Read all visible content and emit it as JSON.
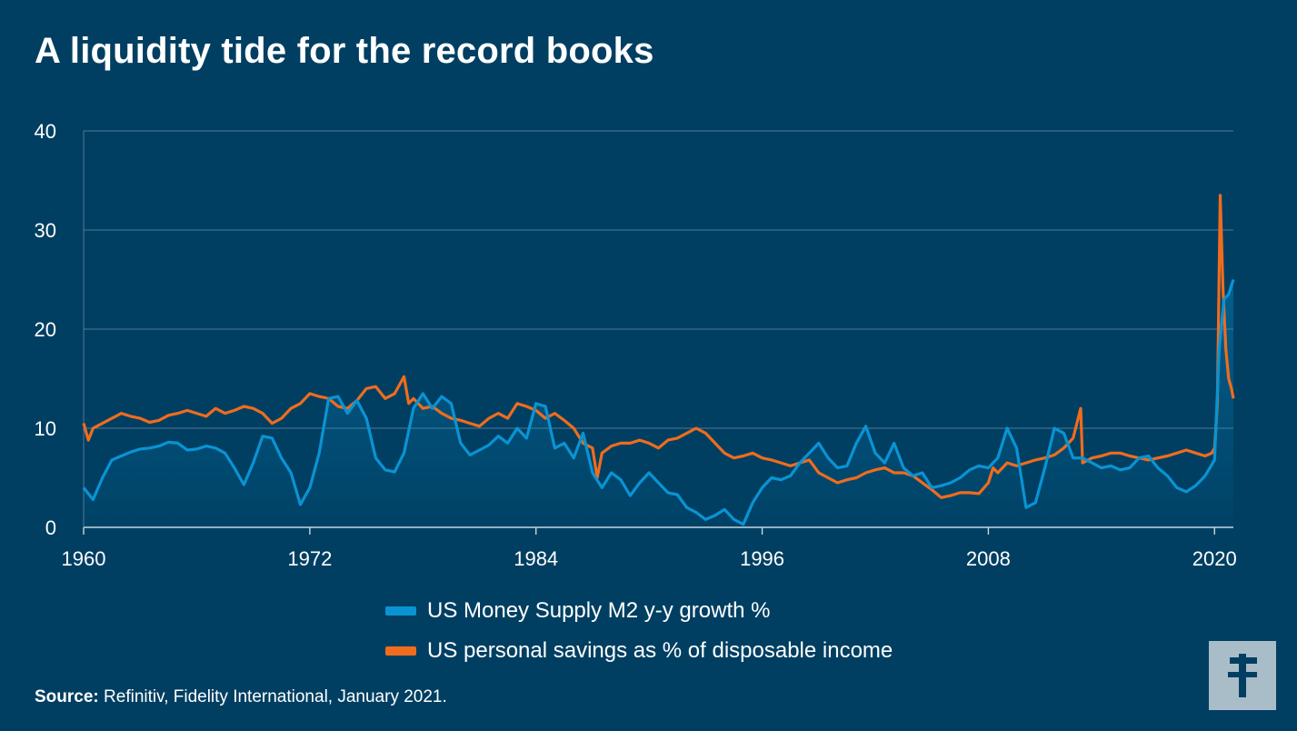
{
  "title": "A liquidity tide for the record books",
  "source": {
    "label": "Source:",
    "text": "Refinitiv, Fidelity International, January 2021."
  },
  "colors": {
    "background": "#003f62",
    "m2": "#0a93d3",
    "savings": "#ef6c1d",
    "grid": "#4f7a94",
    "logo_bg": "#a9bdc8",
    "logo_fg": "#003f62"
  },
  "logo": {
    "icon": "fidelity-f-logo-icon"
  },
  "chart_data": {
    "type": "line",
    "title": "",
    "xlabel": "",
    "ylabel": "",
    "xlim": [
      1960,
      2021
    ],
    "ylim": [
      0,
      40
    ],
    "x_ticks": [
      "1960",
      "1972",
      "1984",
      "1996",
      "2008",
      "2020"
    ],
    "x_tick_values": [
      1960,
      1972,
      1984,
      1996,
      2008,
      2020
    ],
    "y_ticks": [
      "0",
      "10",
      "20",
      "30",
      "40"
    ],
    "y_tick_values": [
      0,
      10,
      20,
      30,
      40
    ],
    "grid": true,
    "legend": "bottom-center",
    "series": [
      {
        "name": "US Money Supply M2 y-y growth %",
        "color": "#0a93d3",
        "points": [
          [
            1960.0,
            4.0
          ],
          [
            1960.5,
            2.8
          ],
          [
            1961.0,
            5.0
          ],
          [
            1961.5,
            6.8
          ],
          [
            1962.0,
            7.2
          ],
          [
            1962.5,
            7.6
          ],
          [
            1963.0,
            7.9
          ],
          [
            1963.5,
            8.0
          ],
          [
            1964.0,
            8.2
          ],
          [
            1964.5,
            8.6
          ],
          [
            1965.0,
            8.5
          ],
          [
            1965.5,
            7.8
          ],
          [
            1966.0,
            7.9
          ],
          [
            1966.5,
            8.2
          ],
          [
            1967.0,
            8.0
          ],
          [
            1967.5,
            7.5
          ],
          [
            1968.0,
            6.0
          ],
          [
            1968.5,
            4.3
          ],
          [
            1969.0,
            6.5
          ],
          [
            1969.5,
            9.2
          ],
          [
            1970.0,
            9.0
          ],
          [
            1970.5,
            7.0
          ],
          [
            1971.0,
            5.5
          ],
          [
            1971.5,
            2.3
          ],
          [
            1972.0,
            4.0
          ],
          [
            1972.5,
            7.5
          ],
          [
            1973.0,
            13.0
          ],
          [
            1973.5,
            13.2
          ],
          [
            1974.0,
            11.5
          ],
          [
            1974.5,
            12.8
          ],
          [
            1975.0,
            11.0
          ],
          [
            1975.5,
            7.0
          ],
          [
            1976.0,
            5.8
          ],
          [
            1976.5,
            5.6
          ],
          [
            1977.0,
            7.5
          ],
          [
            1977.5,
            12.0
          ],
          [
            1978.0,
            13.5
          ],
          [
            1978.5,
            12.0
          ],
          [
            1979.0,
            13.2
          ],
          [
            1979.5,
            12.5
          ],
          [
            1980.0,
            8.5
          ],
          [
            1980.5,
            7.3
          ],
          [
            1981.0,
            7.8
          ],
          [
            1981.5,
            8.3
          ],
          [
            1982.0,
            9.2
          ],
          [
            1982.5,
            8.5
          ],
          [
            1983.0,
            10.0
          ],
          [
            1983.5,
            9.0
          ],
          [
            1984.0,
            12.5
          ],
          [
            1984.5,
            12.2
          ],
          [
            1985.0,
            8.0
          ],
          [
            1985.5,
            8.5
          ],
          [
            1986.0,
            7.0
          ],
          [
            1986.5,
            9.5
          ],
          [
            1987.0,
            5.5
          ],
          [
            1987.5,
            4.0
          ],
          [
            1988.0,
            5.5
          ],
          [
            1988.5,
            4.8
          ],
          [
            1989.0,
            3.2
          ],
          [
            1989.5,
            4.5
          ],
          [
            1990.0,
            5.5
          ],
          [
            1990.5,
            4.5
          ],
          [
            1991.0,
            3.5
          ],
          [
            1991.5,
            3.3
          ],
          [
            1992.0,
            2.0
          ],
          [
            1992.5,
            1.5
          ],
          [
            1993.0,
            0.8
          ],
          [
            1993.5,
            1.2
          ],
          [
            1994.0,
            1.8
          ],
          [
            1994.5,
            0.8
          ],
          [
            1995.0,
            0.3
          ],
          [
            1995.5,
            2.5
          ],
          [
            1996.0,
            4.0
          ],
          [
            1996.5,
            5.0
          ],
          [
            1997.0,
            4.8
          ],
          [
            1997.5,
            5.2
          ],
          [
            1998.0,
            6.5
          ],
          [
            1998.5,
            7.5
          ],
          [
            1999.0,
            8.5
          ],
          [
            1999.5,
            7.0
          ],
          [
            2000.0,
            6.0
          ],
          [
            2000.5,
            6.2
          ],
          [
            2001.0,
            8.5
          ],
          [
            2001.5,
            10.2
          ],
          [
            2002.0,
            7.5
          ],
          [
            2002.5,
            6.5
          ],
          [
            2003.0,
            8.5
          ],
          [
            2003.5,
            6.0
          ],
          [
            2004.0,
            5.2
          ],
          [
            2004.5,
            5.5
          ],
          [
            2005.0,
            4.0
          ],
          [
            2005.5,
            4.2
          ],
          [
            2006.0,
            4.5
          ],
          [
            2006.5,
            5.0
          ],
          [
            2007.0,
            5.8
          ],
          [
            2007.5,
            6.2
          ],
          [
            2008.0,
            6.0
          ],
          [
            2008.5,
            7.0
          ],
          [
            2009.0,
            10.0
          ],
          [
            2009.5,
            8.0
          ],
          [
            2010.0,
            2.0
          ],
          [
            2010.5,
            2.5
          ],
          [
            2011.0,
            6.0
          ],
          [
            2011.5,
            10.0
          ],
          [
            2012.0,
            9.5
          ],
          [
            2012.5,
            7.0
          ],
          [
            2013.0,
            7.0
          ],
          [
            2013.5,
            6.5
          ],
          [
            2014.0,
            6.0
          ],
          [
            2014.5,
            6.2
          ],
          [
            2015.0,
            5.8
          ],
          [
            2015.5,
            6.0
          ],
          [
            2016.0,
            7.0
          ],
          [
            2016.5,
            7.2
          ],
          [
            2017.0,
            6.0
          ],
          [
            2017.5,
            5.2
          ],
          [
            2018.0,
            4.0
          ],
          [
            2018.5,
            3.6
          ],
          [
            2019.0,
            4.2
          ],
          [
            2019.5,
            5.2
          ],
          [
            2020.0,
            6.8
          ],
          [
            2020.25,
            18.0
          ],
          [
            2020.5,
            23.0
          ],
          [
            2020.75,
            23.5
          ],
          [
            2021.0,
            25.0
          ]
        ]
      },
      {
        "name": "US personal savings as % of disposable income",
        "color": "#ef6c1d",
        "points": [
          [
            1960.0,
            10.5
          ],
          [
            1960.25,
            8.8
          ],
          [
            1960.5,
            10.0
          ],
          [
            1961.0,
            10.5
          ],
          [
            1961.5,
            11.0
          ],
          [
            1962.0,
            11.5
          ],
          [
            1962.5,
            11.2
          ],
          [
            1963.0,
            11.0
          ],
          [
            1963.5,
            10.6
          ],
          [
            1964.0,
            10.8
          ],
          [
            1964.5,
            11.3
          ],
          [
            1965.0,
            11.5
          ],
          [
            1965.5,
            11.8
          ],
          [
            1966.0,
            11.5
          ],
          [
            1966.5,
            11.2
          ],
          [
            1967.0,
            12.0
          ],
          [
            1967.5,
            11.5
          ],
          [
            1968.0,
            11.8
          ],
          [
            1968.5,
            12.2
          ],
          [
            1969.0,
            12.0
          ],
          [
            1969.5,
            11.5
          ],
          [
            1970.0,
            10.5
          ],
          [
            1970.5,
            11.0
          ],
          [
            1971.0,
            12.0
          ],
          [
            1971.5,
            12.5
          ],
          [
            1972.0,
            13.5
          ],
          [
            1972.5,
            13.2
          ],
          [
            1973.0,
            13.0
          ],
          [
            1973.5,
            12.2
          ],
          [
            1974.0,
            12.0
          ],
          [
            1974.5,
            12.8
          ],
          [
            1975.0,
            14.0
          ],
          [
            1975.5,
            14.2
          ],
          [
            1976.0,
            13.0
          ],
          [
            1976.5,
            13.5
          ],
          [
            1977.0,
            15.2
          ],
          [
            1977.25,
            12.5
          ],
          [
            1977.5,
            13.0
          ],
          [
            1978.0,
            12.0
          ],
          [
            1978.5,
            12.2
          ],
          [
            1979.0,
            11.5
          ],
          [
            1979.5,
            11.0
          ],
          [
            1980.0,
            10.8
          ],
          [
            1980.5,
            10.5
          ],
          [
            1981.0,
            10.2
          ],
          [
            1981.5,
            11.0
          ],
          [
            1982.0,
            11.5
          ],
          [
            1982.5,
            11.0
          ],
          [
            1983.0,
            12.5
          ],
          [
            1983.5,
            12.2
          ],
          [
            1984.0,
            11.8
          ],
          [
            1984.5,
            11.0
          ],
          [
            1985.0,
            11.5
          ],
          [
            1985.5,
            10.8
          ],
          [
            1986.0,
            10.0
          ],
          [
            1986.5,
            8.5
          ],
          [
            1987.0,
            8.0
          ],
          [
            1987.25,
            5.0
          ],
          [
            1987.5,
            7.5
          ],
          [
            1988.0,
            8.2
          ],
          [
            1988.5,
            8.5
          ],
          [
            1989.0,
            8.5
          ],
          [
            1989.5,
            8.8
          ],
          [
            1990.0,
            8.5
          ],
          [
            1990.5,
            8.0
          ],
          [
            1991.0,
            8.8
          ],
          [
            1991.5,
            9.0
          ],
          [
            1992.0,
            9.5
          ],
          [
            1992.5,
            10.0
          ],
          [
            1993.0,
            9.5
          ],
          [
            1993.5,
            8.5
          ],
          [
            1994.0,
            7.5
          ],
          [
            1994.5,
            7.0
          ],
          [
            1995.0,
            7.2
          ],
          [
            1995.5,
            7.5
          ],
          [
            1996.0,
            7.0
          ],
          [
            1996.5,
            6.8
          ],
          [
            1997.0,
            6.5
          ],
          [
            1997.5,
            6.2
          ],
          [
            1998.0,
            6.5
          ],
          [
            1998.5,
            6.8
          ],
          [
            1999.0,
            5.5
          ],
          [
            1999.5,
            5.0
          ],
          [
            2000.0,
            4.5
          ],
          [
            2000.5,
            4.8
          ],
          [
            2001.0,
            5.0
          ],
          [
            2001.5,
            5.5
          ],
          [
            2002.0,
            5.8
          ],
          [
            2002.5,
            6.0
          ],
          [
            2003.0,
            5.5
          ],
          [
            2003.5,
            5.5
          ],
          [
            2004.0,
            5.2
          ],
          [
            2004.5,
            4.5
          ],
          [
            2005.0,
            3.8
          ],
          [
            2005.5,
            3.0
          ],
          [
            2006.0,
            3.2
          ],
          [
            2006.5,
            3.5
          ],
          [
            2007.0,
            3.5
          ],
          [
            2007.5,
            3.4
          ],
          [
            2008.0,
            4.5
          ],
          [
            2008.25,
            6.0
          ],
          [
            2008.5,
            5.5
          ],
          [
            2009.0,
            6.5
          ],
          [
            2009.5,
            6.2
          ],
          [
            2010.0,
            6.5
          ],
          [
            2010.5,
            6.8
          ],
          [
            2011.0,
            7.0
          ],
          [
            2011.5,
            7.3
          ],
          [
            2012.0,
            8.0
          ],
          [
            2012.5,
            9.0
          ],
          [
            2012.9,
            12.0
          ],
          [
            2013.0,
            6.5
          ],
          [
            2013.5,
            7.0
          ],
          [
            2014.0,
            7.2
          ],
          [
            2014.5,
            7.5
          ],
          [
            2015.0,
            7.5
          ],
          [
            2015.5,
            7.2
          ],
          [
            2016.0,
            7.0
          ],
          [
            2016.5,
            6.8
          ],
          [
            2017.0,
            7.0
          ],
          [
            2017.5,
            7.2
          ],
          [
            2018.0,
            7.5
          ],
          [
            2018.5,
            7.8
          ],
          [
            2019.0,
            7.5
          ],
          [
            2019.5,
            7.2
          ],
          [
            2019.85,
            7.5
          ],
          [
            2020.0,
            8.0
          ],
          [
            2020.15,
            12.5
          ],
          [
            2020.3,
            33.5
          ],
          [
            2020.45,
            24.0
          ],
          [
            2020.6,
            18.0
          ],
          [
            2020.75,
            15.0
          ],
          [
            2020.9,
            14.0
          ],
          [
            2021.0,
            13.0
          ]
        ]
      }
    ]
  }
}
